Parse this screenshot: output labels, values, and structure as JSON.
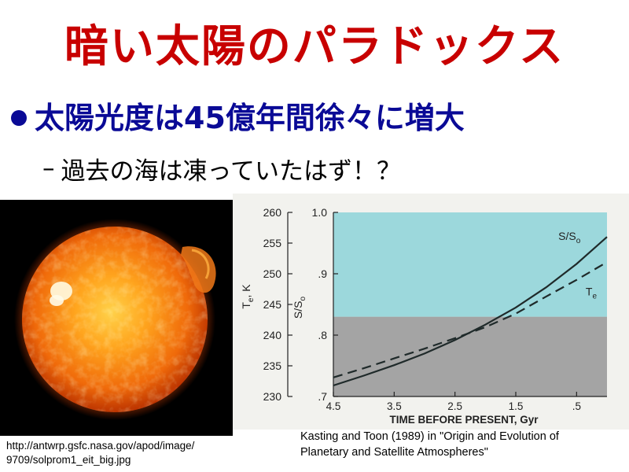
{
  "slide": {
    "title": "暗い太陽のパラドックス",
    "bullet": "太陽光度は45億年間徐々に増大",
    "sub_dash": "–",
    "sub_bullet": "過去の海は凍っていたはず！？"
  },
  "photo": {
    "caption_line1": "http://antwrp.gsfc.nasa.gov/apod/image/",
    "caption_line2": "9709/solprom1_eit_big.jpg"
  },
  "chart_caption": {
    "line1": "Kasting and Toon (1989) in \"Origin and Evolution of",
    "line2": "Planetary and Satellite Atmospheres\""
  },
  "colors": {
    "title": "#c80000",
    "bullet": "#0a0a96",
    "frozen_region": "#a4a4a4",
    "unfrozen_region": "#9cd8dc"
  },
  "chart_data": {
    "type": "line",
    "xlabel": "TIME BEFORE PRESENT, Gyr",
    "x_ticks": [
      "4.5",
      "3.5",
      "2.5",
      "1.5",
      ".5"
    ],
    "xlim": [
      4.5,
      0
    ],
    "ylabel_left": "Te, K",
    "ylabel_left_main": "T",
    "ylabel_left_sub": "e",
    "ylabel_left_suffix": ", K",
    "yticks_left": [
      "260",
      "255",
      "250",
      "245",
      "240",
      "235",
      "230"
    ],
    "ylim_left": [
      230,
      260
    ],
    "ylabel_right": "S/So",
    "ylabel_right_main": "S/S",
    "ylabel_right_sub": "o",
    "yticks_right": [
      "1.0",
      ".9",
      ".8",
      ".7"
    ],
    "ylim_right": [
      0.7,
      1.0
    ],
    "freeze_threshold_K": 243,
    "series": [
      {
        "name": "S/So",
        "label_main": "S/S",
        "label_sub": "o",
        "style": "solid",
        "axis": "right",
        "x": [
          4.5,
          4.0,
          3.5,
          3.0,
          2.5,
          2.0,
          1.5,
          1.0,
          0.5,
          0.0
        ],
        "y": [
          0.718,
          0.734,
          0.751,
          0.77,
          0.792,
          0.817,
          0.845,
          0.878,
          0.916,
          0.96
        ]
      },
      {
        "name": "Te",
        "label_main": "T",
        "label_sub": "e",
        "style": "dashed",
        "axis": "left",
        "x": [
          4.5,
          4.0,
          3.5,
          3.0,
          2.5,
          2.0,
          1.5,
          1.0,
          0.5,
          0.0
        ],
        "y": [
          233.1,
          234.6,
          236.2,
          237.8,
          239.5,
          241.3,
          243.5,
          246.3,
          249.0,
          251.9
        ]
      }
    ]
  }
}
